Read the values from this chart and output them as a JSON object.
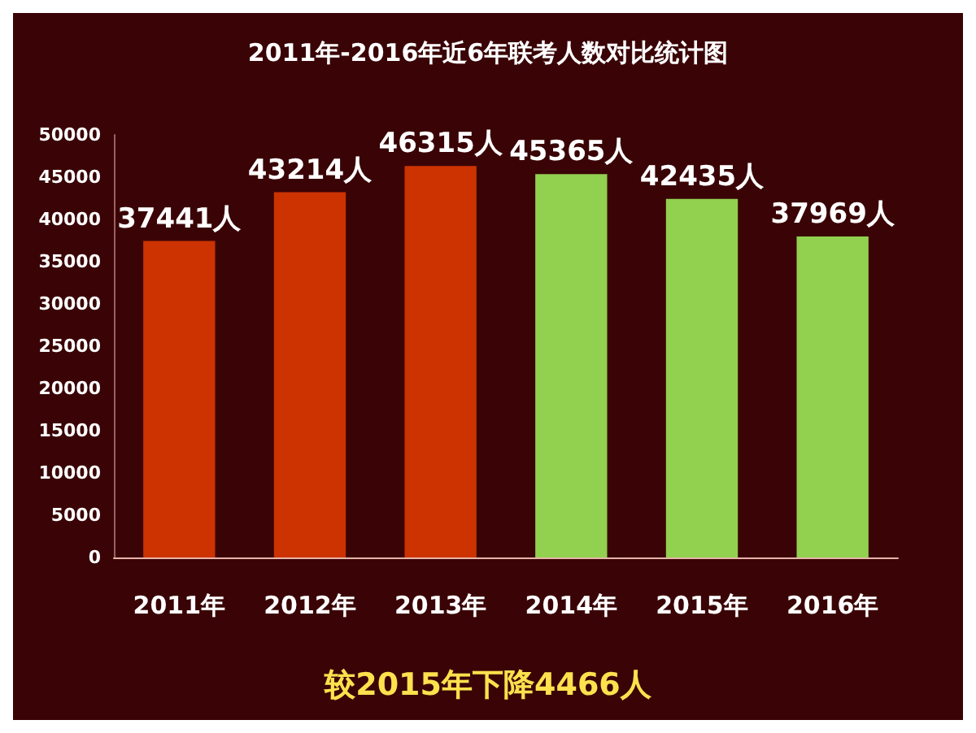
{
  "chart_data": {
    "type": "bar",
    "title": "2011年-2016年近6年联考人数对比统计图",
    "categories": [
      "2011年",
      "2012年",
      "2013年",
      "2014年",
      "2015年",
      "2016年"
    ],
    "values": [
      37441,
      43214,
      46315,
      45365,
      42435,
      37969
    ],
    "colors": [
      "#cc3300",
      "#cc3300",
      "#cc3300",
      "#92d050",
      "#92d050",
      "#92d050"
    ],
    "value_labels": [
      "37441人",
      "43214人",
      "46315人",
      "45365人",
      "42435人",
      "37969人"
    ],
    "ylim": [
      0,
      50000
    ],
    "yticks": [
      0,
      5000,
      10000,
      15000,
      20000,
      25000,
      30000,
      35000,
      40000,
      45000,
      50000
    ],
    "grid": false,
    "annotations": [
      "较2015年下降4466人"
    ]
  }
}
